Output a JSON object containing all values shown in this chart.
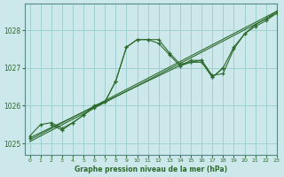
{
  "title": "Graphe pression niveau de la mer (hPa)",
  "bg_color": "#cce8ea",
  "grid_color": "#99cccc",
  "line_color": "#2d6b2d",
  "xlim": [
    -0.5,
    23
  ],
  "ylim": [
    1024.7,
    1028.7
  ],
  "yticks": [
    1025,
    1026,
    1027,
    1028
  ],
  "xticks": [
    0,
    1,
    2,
    3,
    4,
    5,
    6,
    7,
    8,
    9,
    10,
    11,
    12,
    13,
    14,
    15,
    16,
    17,
    18,
    19,
    20,
    21,
    22,
    23
  ],
  "line1_x": [
    0,
    1,
    2,
    3,
    4,
    5,
    6,
    7,
    8,
    9,
    10,
    11,
    12,
    13,
    14,
    15,
    16,
    17,
    18,
    19,
    20,
    21,
    22,
    23
  ],
  "line1_y": [
    1025.2,
    1025.5,
    1025.55,
    1025.4,
    1025.55,
    1025.75,
    1026.0,
    1026.1,
    1026.65,
    1027.55,
    1027.75,
    1027.75,
    1027.75,
    1027.4,
    1027.1,
    1027.15,
    1027.2,
    1026.8,
    1026.85,
    1027.5,
    1027.9,
    1028.1,
    1028.25,
    1028.45
  ],
  "line2_x": [
    2,
    3,
    4,
    5,
    6,
    7,
    8,
    9,
    10,
    11,
    12,
    13,
    14,
    15,
    16,
    17,
    18
  ],
  "line2_y": [
    1025.5,
    1025.35,
    1025.55,
    1025.75,
    1025.95,
    1026.1,
    1026.65,
    1027.55,
    1027.75,
    1027.75,
    1027.65,
    1027.35,
    1027.05,
    1027.15,
    1027.15,
    1026.75,
    1027.0
  ],
  "line3_x": [
    0,
    15,
    16,
    17,
    18,
    19,
    20,
    21,
    22,
    23
  ],
  "line3_y": [
    1025.15,
    1027.2,
    1027.2,
    1026.75,
    1027.0,
    1027.55,
    1027.9,
    1028.15,
    1028.3,
    1028.5
  ],
  "line4_x": [
    0,
    23
  ],
  "line4_y": [
    1025.1,
    1028.5
  ],
  "line5_x": [
    0,
    23
  ],
  "line5_y": [
    1025.05,
    1028.45
  ]
}
